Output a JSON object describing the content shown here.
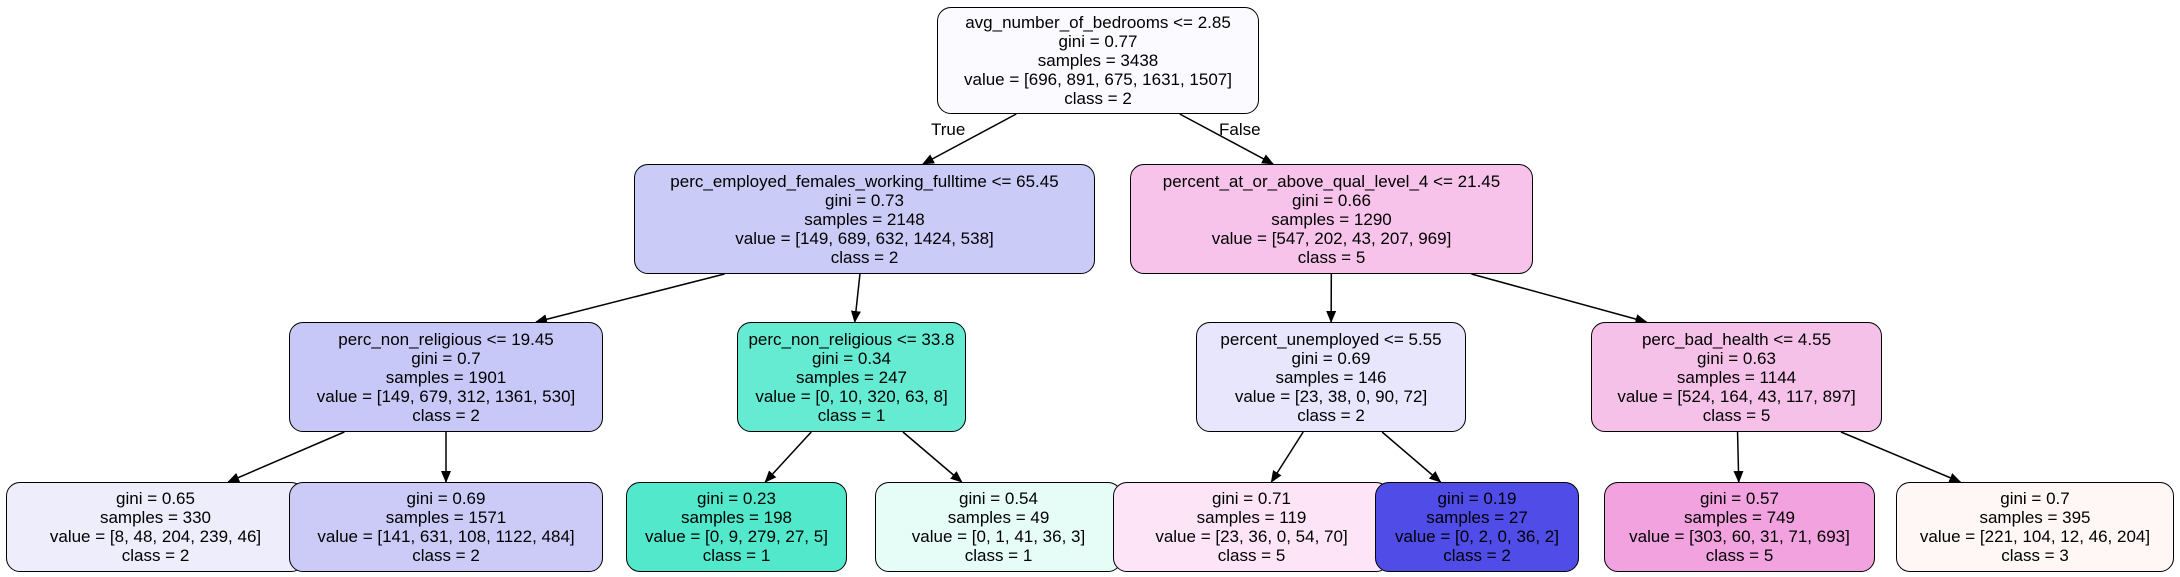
{
  "edge_labels": {
    "true_label": "True",
    "false_label": "False"
  },
  "nodes": [
    {
      "id": "n0",
      "lines": [
        "avg_number_of_bedrooms <= 2.85",
        "gini = 0.77",
        "samples = 3438",
        "value = [696, 891, 675, 1631, 1507]",
        "class = 2"
      ],
      "fill": "#fafaff"
    },
    {
      "id": "n1",
      "lines": [
        "perc_employed_females_working_fulltime <= 65.45",
        "gini = 0.73",
        "samples = 2148",
        "value = [149, 689, 632, 1424, 538]",
        "class = 2"
      ],
      "fill": "#cbcbf8"
    },
    {
      "id": "n2",
      "lines": [
        "percent_at_or_above_qual_level_4 <= 21.45",
        "gini = 0.66",
        "samples = 1290",
        "value = [547, 202, 43, 207, 969]",
        "class = 5"
      ],
      "fill": "#f7c3ea"
    },
    {
      "id": "n3",
      "lines": [
        "perc_non_religious <= 19.45",
        "gini = 0.7",
        "samples = 1901",
        "value = [149, 679, 312, 1361, 530]",
        "class = 2"
      ],
      "fill": "#c8c8f8"
    },
    {
      "id": "n4",
      "lines": [
        "perc_non_religious <= 33.8",
        "gini = 0.34",
        "samples = 247",
        "value = [0, 10, 320, 63, 8]",
        "class = 1"
      ],
      "fill": "#64ebd2"
    },
    {
      "id": "n5",
      "lines": [
        "percent_unemployed <= 5.55",
        "gini = 0.69",
        "samples = 146",
        "value = [23, 38, 0, 90, 72]",
        "class = 2"
      ],
      "fill": "#e7e6fc"
    },
    {
      "id": "n6",
      "lines": [
        "perc_bad_health <= 4.55",
        "gini = 0.63",
        "samples = 1144",
        "value = [524, 164, 43, 117, 897]",
        "class = 5"
      ],
      "fill": "#f6c1e9"
    },
    {
      "id": "n7",
      "lines": [
        "gini = 0.65",
        "samples = 330",
        "value = [8, 48, 204, 239, 46]",
        "class = 2"
      ],
      "fill": "#ededfc"
    },
    {
      "id": "n8",
      "lines": [
        "gini = 0.69",
        "samples = 1571",
        "value = [141, 631, 108, 1122, 484]",
        "class = 2"
      ],
      "fill": "#cccbf8"
    },
    {
      "id": "n9",
      "lines": [
        "gini = 0.23",
        "samples = 198",
        "value = [0, 9, 279, 27, 5]",
        "class = 1"
      ],
      "fill": "#52e8cb"
    },
    {
      "id": "n10",
      "lines": [
        "gini = 0.54",
        "samples = 49",
        "value = [0, 1, 41, 36, 3]",
        "class = 1"
      ],
      "fill": "#e6fcf7"
    },
    {
      "id": "n11",
      "lines": [
        "gini = 0.71",
        "samples = 119",
        "value = [23, 36, 0, 54, 70]",
        "class = 5"
      ],
      "fill": "#fde5f7"
    },
    {
      "id": "n12",
      "lines": [
        "gini = 0.19",
        "samples = 27",
        "value = [0, 2, 0, 36, 2]",
        "class = 2"
      ],
      "fill": "#4f4ce8"
    },
    {
      "id": "n13",
      "lines": [
        "gini = 0.57",
        "samples = 749",
        "value = [303, 60, 31, 71, 693]",
        "class = 5"
      ],
      "fill": "#f2a2de"
    },
    {
      "id": "n14",
      "lines": [
        "gini = 0.7",
        "samples = 395",
        "value = [221, 104, 12, 46, 204]",
        "class = 3"
      ],
      "fill": "#fef7f6"
    }
  ],
  "edges": [
    [
      "n0",
      "n1"
    ],
    [
      "n0",
      "n2"
    ],
    [
      "n1",
      "n3"
    ],
    [
      "n1",
      "n4"
    ],
    [
      "n2",
      "n5"
    ],
    [
      "n2",
      "n6"
    ],
    [
      "n3",
      "n7"
    ],
    [
      "n3",
      "n8"
    ],
    [
      "n4",
      "n9"
    ],
    [
      "n4",
      "n10"
    ],
    [
      "n5",
      "n11"
    ],
    [
      "n5",
      "n12"
    ],
    [
      "n6",
      "n13"
    ],
    [
      "n6",
      "n14"
    ]
  ]
}
